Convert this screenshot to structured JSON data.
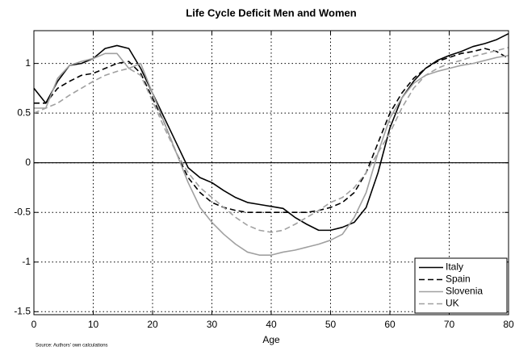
{
  "chart_data": {
    "type": "line",
    "title": "Life Cycle Deficit Men and Women",
    "xlabel": "Age",
    "source": "Source: Authors' own calculations",
    "x": [
      0,
      2,
      4,
      6,
      8,
      10,
      12,
      14,
      16,
      18,
      20,
      22,
      24,
      26,
      28,
      30,
      32,
      34,
      36,
      38,
      40,
      42,
      44,
      46,
      48,
      50,
      52,
      54,
      56,
      58,
      60,
      62,
      64,
      66,
      68,
      70,
      72,
      74,
      76,
      78,
      80
    ],
    "series": [
      {
        "name": "Italy",
        "color": "#000000",
        "linestyle": "solid",
        "values": [
          0.75,
          0.6,
          0.82,
          0.98,
          1.0,
          1.05,
          1.15,
          1.18,
          1.15,
          0.95,
          0.7,
          0.45,
          0.2,
          -0.05,
          -0.15,
          -0.2,
          -0.28,
          -0.35,
          -0.4,
          -0.42,
          -0.44,
          -0.46,
          -0.55,
          -0.62,
          -0.68,
          -0.68,
          -0.65,
          -0.6,
          -0.45,
          -0.1,
          0.35,
          0.65,
          0.82,
          0.95,
          1.03,
          1.08,
          1.12,
          1.17,
          1.2,
          1.24,
          1.3
        ]
      },
      {
        "name": "Spain",
        "color": "#000000",
        "linestyle": "dashed",
        "values": [
          0.6,
          0.6,
          0.75,
          0.82,
          0.88,
          0.9,
          0.95,
          1.0,
          1.02,
          0.9,
          0.65,
          0.4,
          0.1,
          -0.15,
          -0.3,
          -0.4,
          -0.45,
          -0.48,
          -0.5,
          -0.5,
          -0.5,
          -0.5,
          -0.5,
          -0.5,
          -0.48,
          -0.45,
          -0.4,
          -0.3,
          -0.1,
          0.2,
          0.5,
          0.7,
          0.85,
          0.95,
          1.02,
          1.06,
          1.1,
          1.12,
          1.15,
          1.12,
          1.05
        ]
      },
      {
        "name": "Slovenia",
        "color": "#a0a0a0",
        "linestyle": "solid",
        "values": [
          0.55,
          0.55,
          0.85,
          0.98,
          1.02,
          1.05,
          1.1,
          1.1,
          0.95,
          1.0,
          0.7,
          0.4,
          0.1,
          -0.2,
          -0.45,
          -0.6,
          -0.72,
          -0.82,
          -0.9,
          -0.93,
          -0.93,
          -0.9,
          -0.88,
          -0.85,
          -0.82,
          -0.78,
          -0.72,
          -0.55,
          -0.3,
          0.1,
          0.45,
          0.65,
          0.8,
          0.88,
          0.92,
          0.95,
          0.98,
          1.0,
          1.03,
          1.06,
          1.08
        ]
      },
      {
        "name": "UK",
        "color": "#a0a0a0",
        "linestyle": "dashed",
        "values": [
          0.5,
          0.55,
          0.6,
          0.68,
          0.75,
          0.82,
          0.88,
          0.92,
          0.95,
          0.88,
          0.62,
          0.35,
          0.1,
          -0.1,
          -0.25,
          -0.35,
          -0.45,
          -0.55,
          -0.63,
          -0.68,
          -0.7,
          -0.68,
          -0.62,
          -0.55,
          -0.48,
          -0.4,
          -0.35,
          -0.25,
          -0.1,
          0.1,
          0.3,
          0.55,
          0.75,
          0.88,
          0.95,
          1.0,
          1.03,
          1.07,
          1.1,
          1.13,
          1.16
        ]
      }
    ],
    "xlim": [
      0,
      80
    ],
    "xticks": [
      0,
      10,
      20,
      30,
      40,
      50,
      60,
      70,
      80
    ],
    "ylim": [
      -1.53,
      1.33
    ],
    "yticks": [
      -1.5,
      -1,
      -0.5,
      0,
      0.5,
      1
    ],
    "grid": true,
    "zero_line": true,
    "legend_position": "lower right"
  }
}
